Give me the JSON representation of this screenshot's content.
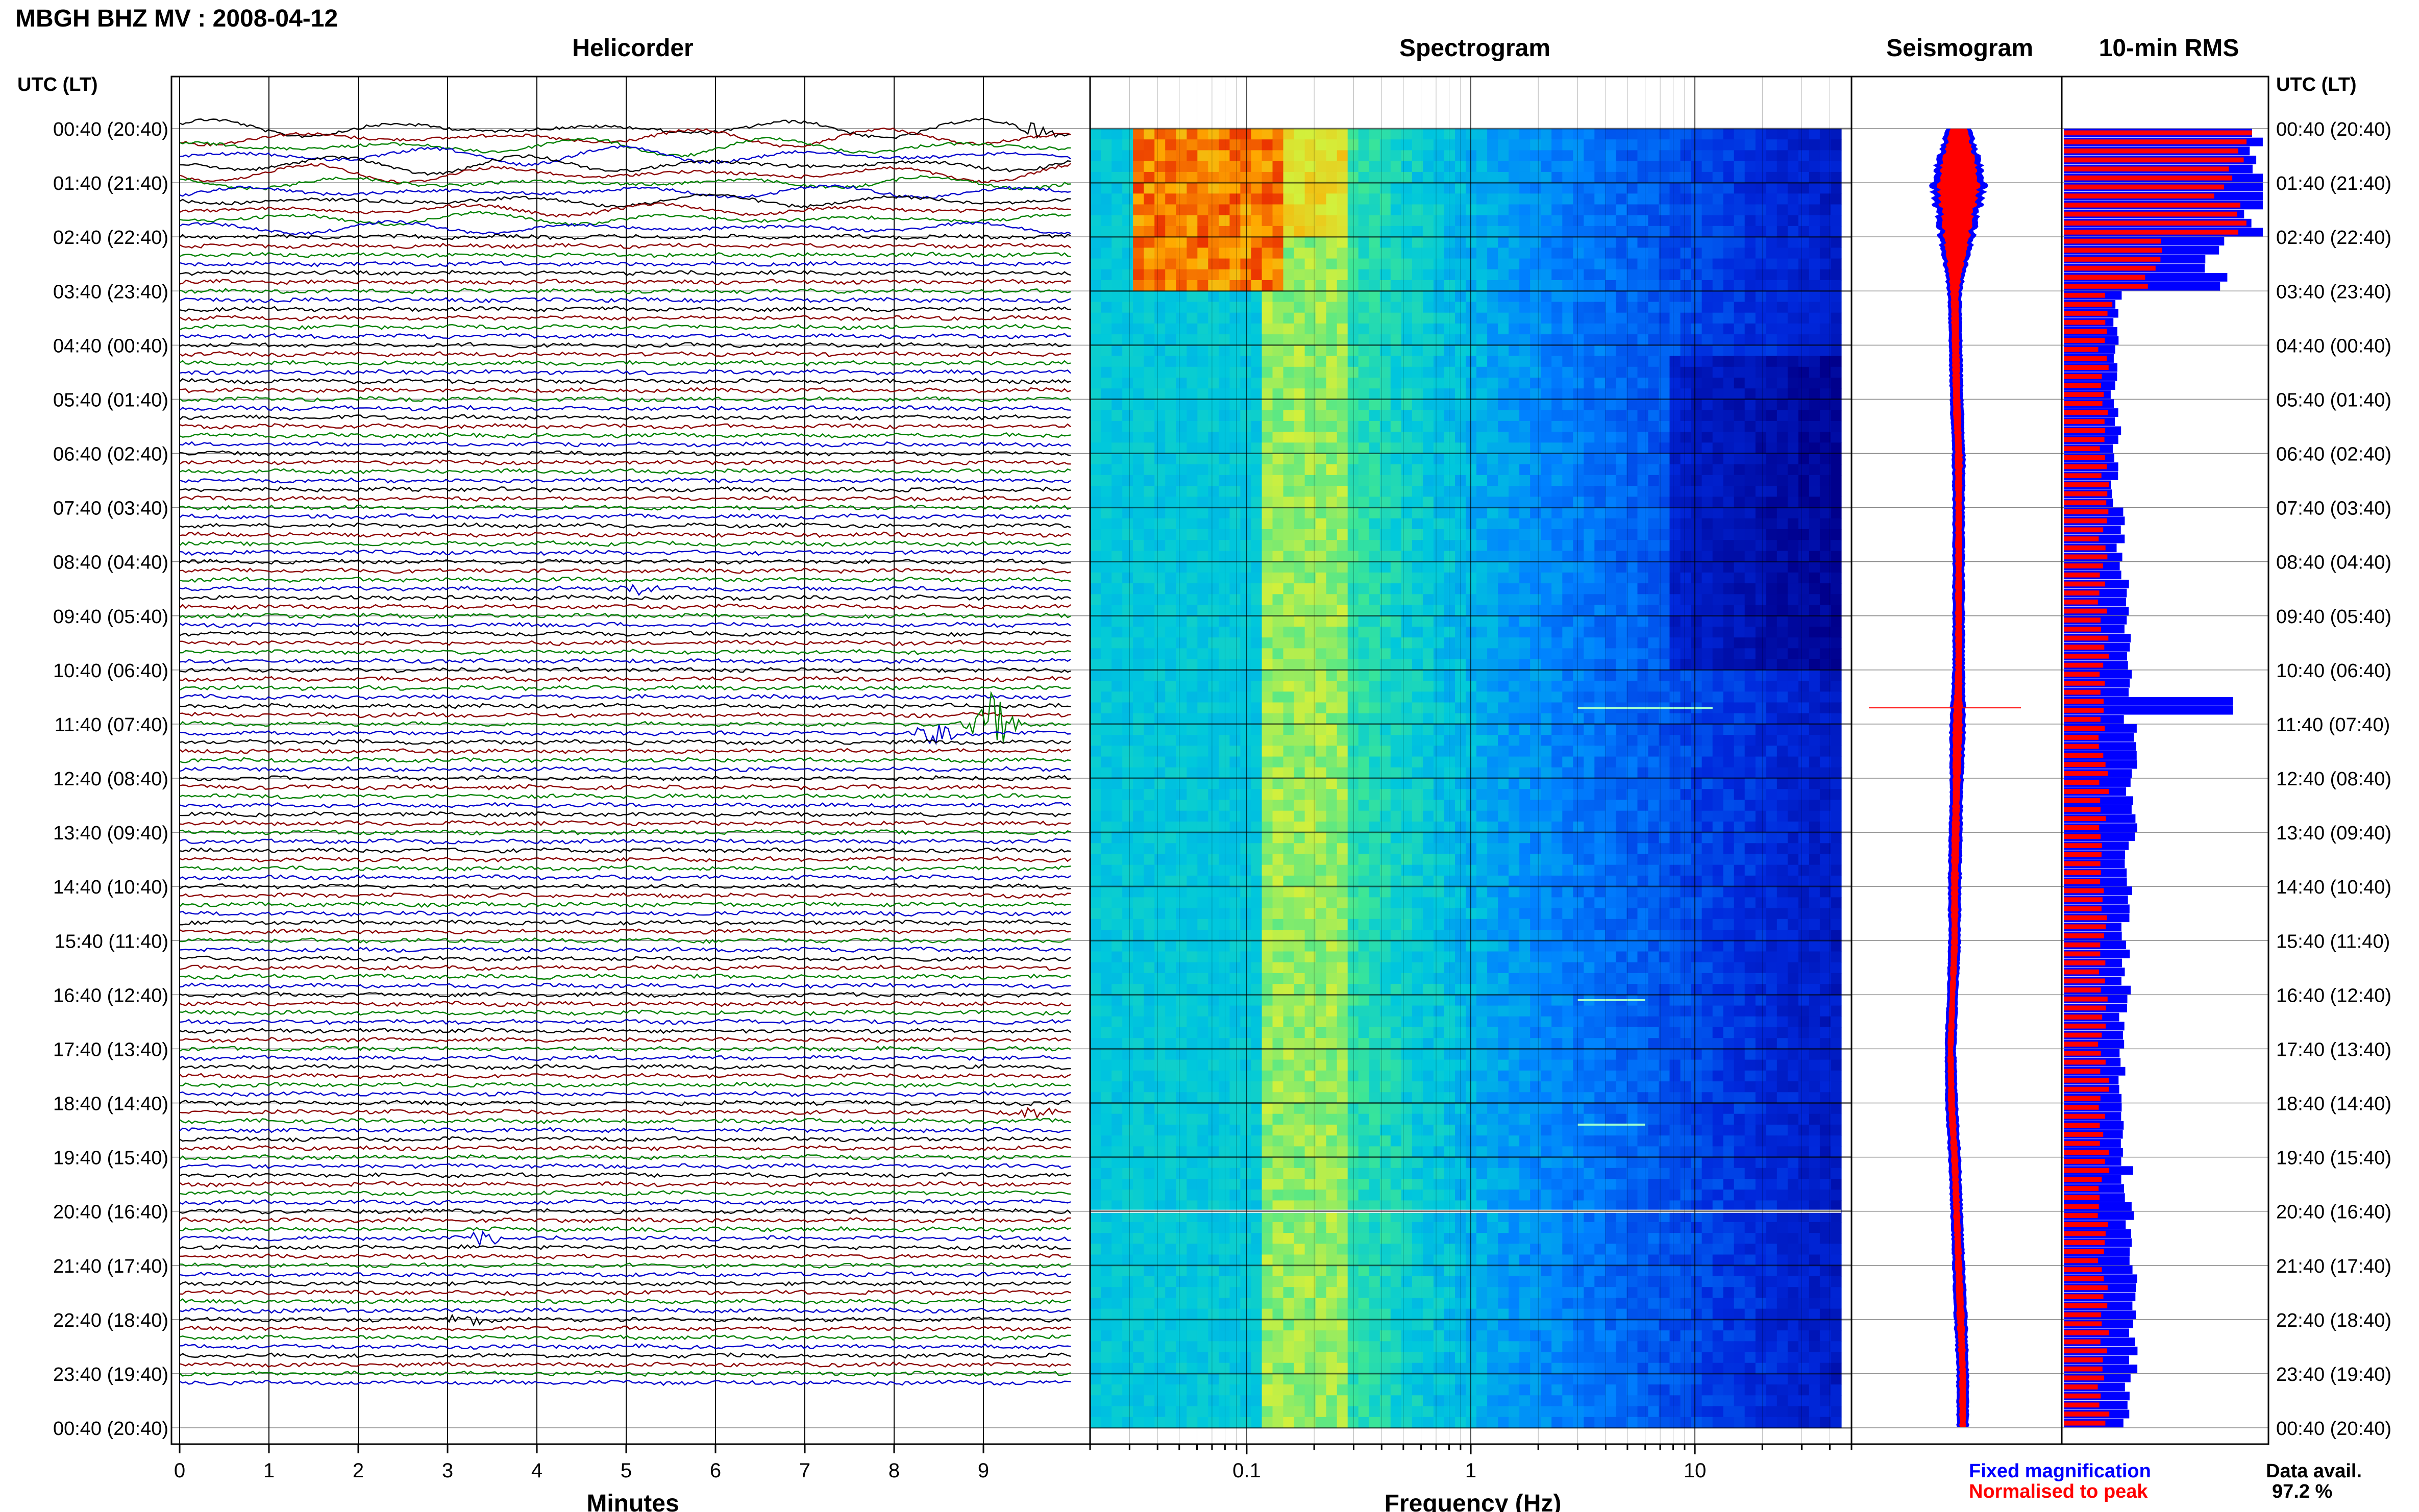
{
  "page": {
    "title": "MBGH BHZ MV : 2008-04-12",
    "utc_lt_label": "UTC (LT)"
  },
  "panels": {
    "helicorder": "Helicorder",
    "spectrogram": "Spectrogram",
    "seismogram": "Seismogram",
    "rms": "10-min RMS"
  },
  "axes": {
    "minutes_label": "Minutes",
    "frequency_label": "Frequency (Hz)",
    "minutes_ticks": [
      "0",
      "1",
      "2",
      "3",
      "4",
      "5",
      "6",
      "7",
      "8",
      "9"
    ],
    "frequency_ticks": [
      "0.1",
      "1",
      "10"
    ]
  },
  "legend": {
    "fixed": "Fixed magnification",
    "normalised": "Normalised to peak",
    "data_avail_label": "Data avail.",
    "data_avail_value": "97.2 %"
  },
  "colors": {
    "trace_cycle": [
      "#000000",
      "#8b0000",
      "#008000",
      "#0000cc"
    ],
    "rms_fixed": "#0000ff",
    "rms_normalised": "#ff0000",
    "frame": "#000000",
    "grid": "#000000"
  },
  "chart_data": [
    {
      "type": "line",
      "name": "Helicorder",
      "x_unit": "minutes",
      "xlim": [
        0,
        10
      ],
      "time_labels": [
        "00:40 (20:40)",
        "01:40 (21:40)",
        "02:40 (22:40)",
        "03:40 (23:40)",
        "04:40 (00:40)",
        "05:40 (01:40)",
        "06:40 (02:40)",
        "07:40 (03:40)",
        "08:40 (04:40)",
        "09:40 (05:40)",
        "10:40 (06:40)",
        "11:40 (07:40)",
        "12:40 (08:40)",
        "13:40 (09:40)",
        "14:40 (10:40)",
        "15:40 (11:40)",
        "16:40 (12:40)",
        "17:40 (13:40)",
        "18:40 (14:40)",
        "19:40 (15:40)",
        "20:40 (16:40)",
        "21:40 (17:40)",
        "22:40 (18:40)",
        "23:40 (19:40)",
        "00:40 (20:40)"
      ],
      "traces_per_hour": 6,
      "trace_count": 140,
      "noisy_hours": 2,
      "events": [
        {
          "trace": 0,
          "minute": 9.6,
          "color": "#000000",
          "amp": 0.9
        },
        {
          "trace": 51,
          "minute": 5.1,
          "color": "#8b0000",
          "amp": 0.5
        },
        {
          "trace": 66,
          "minute": 9.1,
          "color": "#008000",
          "amp": 3.2
        },
        {
          "trace": 67,
          "minute": 8.5,
          "color": "#0000cc",
          "amp": 1.2
        },
        {
          "trace": 109,
          "minute": 9.6,
          "color": "#000000",
          "amp": 0.6
        },
        {
          "trace": 123,
          "minute": 3.4,
          "color": "#0000cc",
          "amp": 0.8
        },
        {
          "trace": 132,
          "minute": 3.2,
          "color": "#8b0000",
          "amp": 0.5
        }
      ]
    },
    {
      "type": "heatmap",
      "name": "Spectrogram",
      "x_label": "Frequency (Hz)",
      "x_scale": "log",
      "xlim": [
        0.02,
        50
      ],
      "hours": 24,
      "hot_region": {
        "hours": [
          0,
          3
        ],
        "freq": [
          0.03,
          0.15
        ]
      },
      "gaps": [
        {
          "hour": 20.0
        }
      ],
      "spectral_lines": [
        {
          "hour": 10.7,
          "freq": [
            3,
            12
          ]
        },
        {
          "hour": 16.1,
          "freq": [
            3,
            6
          ]
        },
        {
          "hour": 18.4,
          "freq": [
            3,
            6
          ]
        }
      ]
    },
    {
      "type": "area",
      "name": "Seismogram",
      "hours": 24,
      "envelope_width": [
        20,
        50,
        30,
        10,
        9,
        9,
        9,
        8,
        8,
        8,
        8,
        12,
        9,
        9,
        9,
        8,
        7,
        7,
        8,
        8,
        8,
        8,
        9,
        8
      ],
      "center_offset": [
        0,
        0,
        -2,
        -4,
        -3,
        -2,
        0,
        0,
        0,
        0,
        0,
        -1,
        -2,
        -3,
        -4,
        -4,
        -6,
        -8,
        -7,
        -4,
        -2,
        0,
        2,
        4
      ]
    },
    {
      "type": "bar",
      "name": "10-min RMS",
      "bins": 144,
      "series": [
        {
          "name": "Fixed magnification",
          "color": "#0000ff",
          "hourly_level": [
            1.0,
            1.0,
            0.75,
            0.27,
            0.25,
            0.27,
            0.26,
            0.28,
            0.3,
            0.31,
            0.33,
            0.35,
            0.34,
            0.33,
            0.32,
            0.32,
            0.3,
            0.29,
            0.31,
            0.32,
            0.33,
            0.34,
            0.34,
            0.33
          ]
        },
        {
          "name": "Normalised to peak",
          "color": "#ff0000",
          "hourly_level": [
            0.9,
            0.8,
            0.45,
            0.22,
            0.2,
            0.2,
            0.2,
            0.2,
            0.2,
            0.2,
            0.2,
            0.2,
            0.2,
            0.2,
            0.2,
            0.2,
            0.2,
            0.2,
            0.2,
            0.2,
            0.2,
            0.2,
            0.2,
            0.2
          ]
        }
      ],
      "spike_hour": 10.6,
      "spike_level": 0.85
    }
  ]
}
